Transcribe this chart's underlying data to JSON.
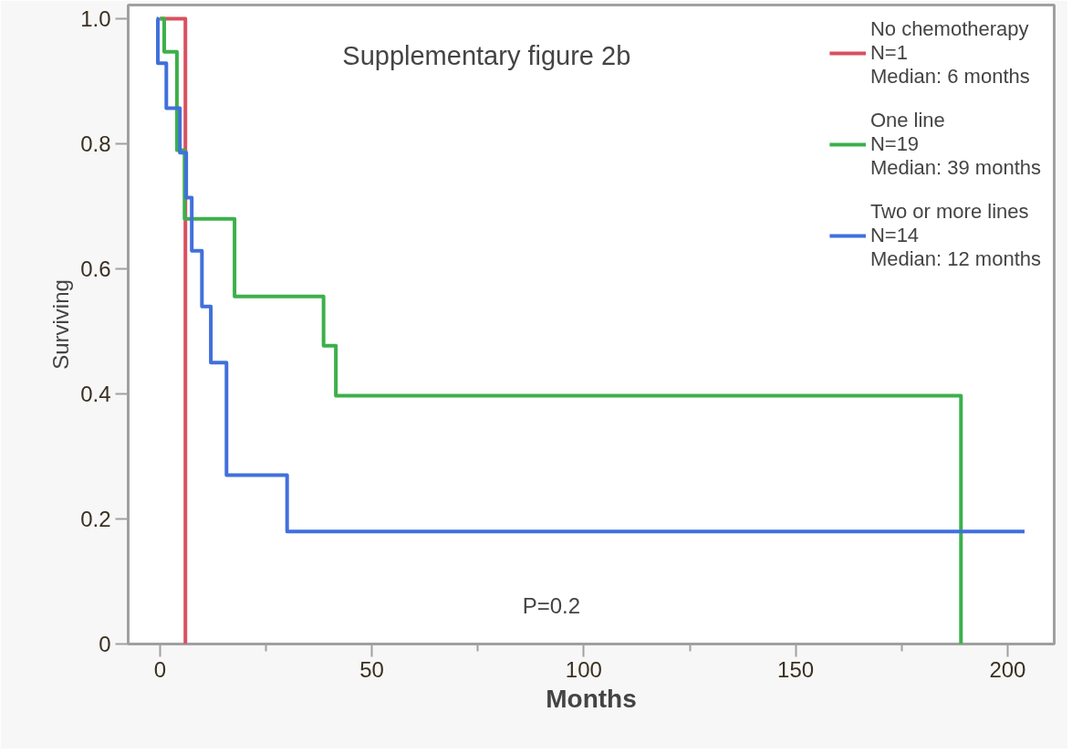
{
  "chart_data": {
    "type": "step",
    "title": "Supplementary figure 2b",
    "xlabel": "Months",
    "ylabel": "Surviving",
    "annotations": [
      "P=0.2"
    ],
    "xlim": [
      -7.5,
      211
    ],
    "ylim": [
      0,
      1.022
    ],
    "xticks": [
      0,
      {
        "value": 25,
        "label": null
      },
      50,
      {
        "value": 75,
        "label": null
      },
      100,
      {
        "value": 125,
        "label": null
      },
      150,
      {
        "value": 175,
        "label": null
      },
      200
    ],
    "yticks": [
      {
        "value": 0,
        "label": "0"
      },
      0.2,
      0.4,
      0.6,
      0.8,
      {
        "value": 1,
        "label": "1.0"
      }
    ],
    "grid": false,
    "legend": "top right",
    "marker": "none",
    "line_style": "solid",
    "series": [
      {
        "name": "No chemotherapy\nN=1\nMedian: 6 months",
        "color": "#d9505f",
        "x": [
          0,
          6
        ],
        "values": [
          1,
          0
        ]
      },
      {
        "name": "One line\nN=19\nMedian: 39 months",
        "color": "#3cb04a",
        "x": [
          0,
          1,
          4,
          5.8,
          17.6,
          38.6,
          41.5,
          189
        ],
        "values": [
          1,
          0.947,
          0.79,
          0.68,
          0.556,
          0.477,
          0.397,
          0
        ]
      },
      {
        "name": "Two or more lines\nN=14\nMedian: 12 months",
        "color": "#4170dc",
        "x": [
          -0.8,
          -0.5,
          1.5,
          4.7,
          6.2,
          7.5,
          9.9,
          12,
          15.7,
          30,
          204
        ],
        "values": [
          1,
          0.929,
          0.857,
          0.786,
          0.714,
          0.629,
          0.54,
          0.45,
          0.27,
          0.18,
          0.18
        ]
      }
    ]
  }
}
